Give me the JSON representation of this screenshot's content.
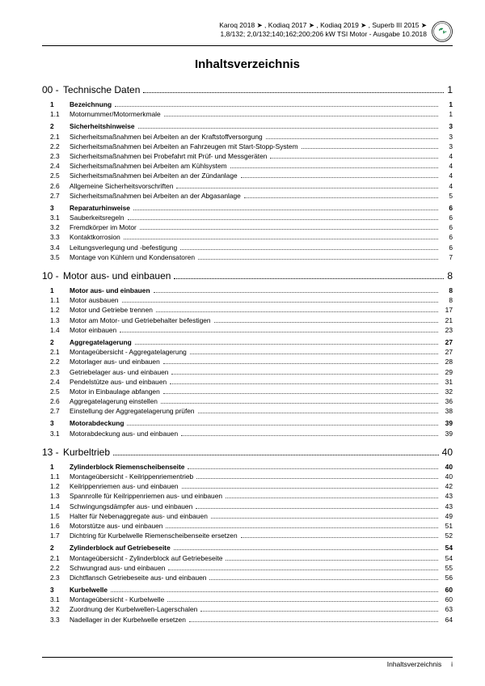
{
  "header": {
    "line1": "Karoq 2018 ➤ , Kodiaq 2017 ➤ , Kodiaq 2019 ➤ , Superb III 2015 ➤",
    "line2": "1,8/132; 2,0/132;140;162;200;206 kW TSI Motor - Ausgabe 10.2018"
  },
  "title": "Inhaltsverzeichnis",
  "footer": {
    "label": "Inhaltsverzeichnis",
    "page": "i"
  },
  "chapters": [
    {
      "num": "00 -",
      "title": "Technische Daten",
      "page": "1",
      "rows": [
        {
          "num": "1",
          "title": "Bezeichnung",
          "page": "1",
          "bold": true
        },
        {
          "num": "1.1",
          "title": "Motornummer/Motormerkmale",
          "page": "1"
        },
        {
          "num": "2",
          "title": "Sicherheitshinweise",
          "page": "3",
          "bold": true
        },
        {
          "num": "2.1",
          "title": "Sicherheitsmaßnahmen bei Arbeiten an der Kraftstoffversorgung",
          "page": "3"
        },
        {
          "num": "2.2",
          "title": "Sicherheitsmaßnahmen bei Arbeiten an Fahrzeugen mit Start-Stopp-System",
          "page": "3"
        },
        {
          "num": "2.3",
          "title": "Sicherheitsmaßnahmen bei Probefahrt mit Prüf- und Messgeräten",
          "page": "4"
        },
        {
          "num": "2.4",
          "title": "Sicherheitsmaßnahmen bei Arbeiten am Kühlsystem",
          "page": "4"
        },
        {
          "num": "2.5",
          "title": "Sicherheitsmaßnahmen bei Arbeiten an der Zündanlage",
          "page": "4"
        },
        {
          "num": "2.6",
          "title": "Allgemeine Sicherheitsvorschriften",
          "page": "4"
        },
        {
          "num": "2.7",
          "title": "Sicherheitsmaßnahmen bei Arbeiten an der Abgasanlage",
          "page": "5"
        },
        {
          "num": "3",
          "title": "Reparaturhinweise",
          "page": "6",
          "bold": true
        },
        {
          "num": "3.1",
          "title": "Sauberkeitsregeln",
          "page": "6"
        },
        {
          "num": "3.2",
          "title": "Fremdkörper im Motor",
          "page": "6"
        },
        {
          "num": "3.3",
          "title": "Kontaktkorrosion",
          "page": "6"
        },
        {
          "num": "3.4",
          "title": "Leitungsverlegung und -befestigung",
          "page": "6"
        },
        {
          "num": "3.5",
          "title": "Montage von Kühlern und Kondensatoren",
          "page": "7"
        }
      ]
    },
    {
      "num": "10 -",
      "title": "Motor aus- und einbauen",
      "page": "8",
      "rows": [
        {
          "num": "1",
          "title": "Motor aus- und einbauen",
          "page": "8",
          "bold": true
        },
        {
          "num": "1.1",
          "title": "Motor ausbauen",
          "page": "8"
        },
        {
          "num": "1.2",
          "title": "Motor und Getriebe trennen",
          "page": "17"
        },
        {
          "num": "1.3",
          "title": "Motor am Motor- und Getriebehalter befestigen",
          "page": "21"
        },
        {
          "num": "1.4",
          "title": "Motor einbauen",
          "page": "23"
        },
        {
          "num": "2",
          "title": "Aggregatelagerung",
          "page": "27",
          "bold": true
        },
        {
          "num": "2.1",
          "title": "Montageübersicht - Aggregatelagerung",
          "page": "27"
        },
        {
          "num": "2.2",
          "title": "Motorlager aus- und einbauen",
          "page": "28"
        },
        {
          "num": "2.3",
          "title": "Getriebelager aus- und einbauen",
          "page": "29"
        },
        {
          "num": "2.4",
          "title": "Pendelstütze aus- und einbauen",
          "page": "31"
        },
        {
          "num": "2.5",
          "title": "Motor in Einbaulage abfangen",
          "page": "32"
        },
        {
          "num": "2.6",
          "title": "Aggregatelagerung einstellen",
          "page": "36"
        },
        {
          "num": "2.7",
          "title": "Einstellung der Aggregatelagerung prüfen",
          "page": "38"
        },
        {
          "num": "3",
          "title": "Motorabdeckung",
          "page": "39",
          "bold": true
        },
        {
          "num": "3.1",
          "title": "Motorabdeckung aus- und einbauen",
          "page": "39"
        }
      ]
    },
    {
      "num": "13 -",
      "title": "Kurbeltrieb",
      "page": "40",
      "rows": [
        {
          "num": "1",
          "title": "Zylinderblock Riemenscheibenseite",
          "page": "40",
          "bold": true
        },
        {
          "num": "1.1",
          "title": "Montageübersicht - Keilrippenriementrieb",
          "page": "40"
        },
        {
          "num": "1.2",
          "title": "Keilrippenriemen aus- und einbauen",
          "page": "42"
        },
        {
          "num": "1.3",
          "title": "Spannrolle für Keilrippenriemen aus- und einbauen",
          "page": "43"
        },
        {
          "num": "1.4",
          "title": "Schwingungsdämpfer aus- und einbauen",
          "page": "43"
        },
        {
          "num": "1.5",
          "title": "Halter für Nebenaggregate aus- und einbauen",
          "page": "49"
        },
        {
          "num": "1.6",
          "title": "Motorstütze aus- und einbauen",
          "page": "51"
        },
        {
          "num": "1.7",
          "title": "Dichtring für Kurbelwelle Riemenscheibenseite ersetzen",
          "page": "52"
        },
        {
          "num": "2",
          "title": "Zylinderblock auf Getriebeseite",
          "page": "54",
          "bold": true
        },
        {
          "num": "2.1",
          "title": "Montageübersicht - Zylinderblock auf Getriebeseite",
          "page": "54"
        },
        {
          "num": "2.2",
          "title": "Schwungrad aus- und einbauen",
          "page": "55"
        },
        {
          "num": "2.3",
          "title": "Dichtflansch Getriebeseite aus- und einbauen",
          "page": "56"
        },
        {
          "num": "3",
          "title": "Kurbelwelle",
          "page": "60",
          "bold": true
        },
        {
          "num": "3.1",
          "title": "Montageübersicht - Kurbelwelle",
          "page": "60"
        },
        {
          "num": "3.2",
          "title": "Zuordnung der Kurbelwellen-Lagerschalen",
          "page": "63"
        },
        {
          "num": "3.3",
          "title": "Nadellager in der Kurbelwelle ersetzen",
          "page": "64"
        }
      ]
    }
  ]
}
